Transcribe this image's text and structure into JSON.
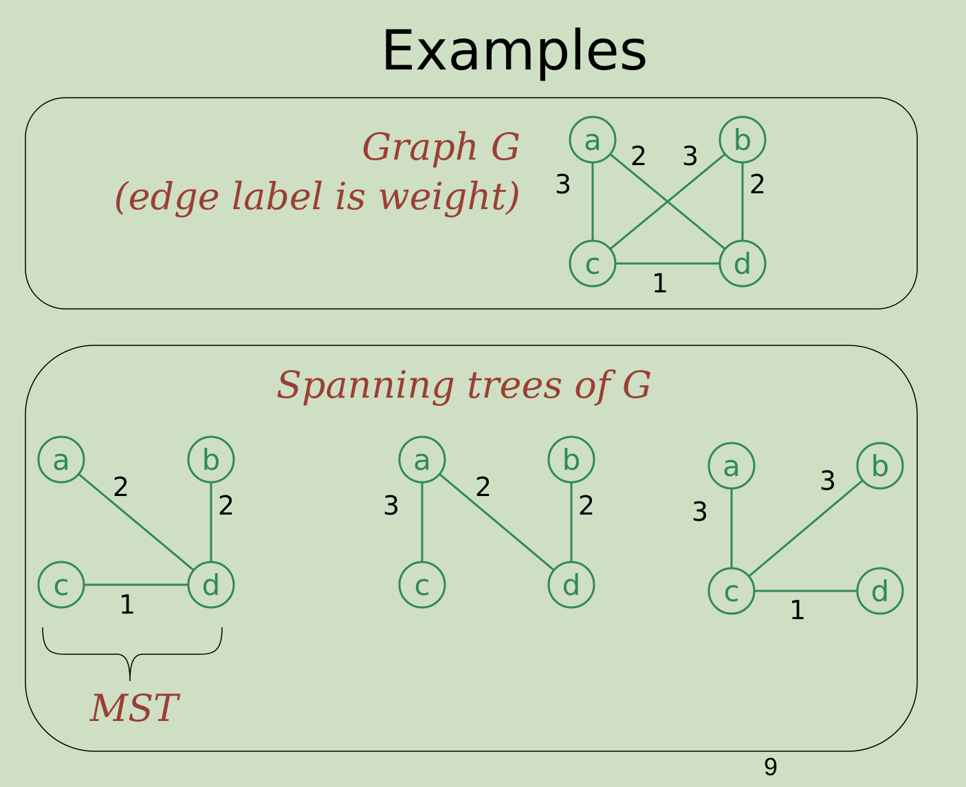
{
  "title": "Examples",
  "graph_panel": {
    "title_line1": "Graph G",
    "title_line2": "(edge label is weight)",
    "nodes": [
      "a",
      "b",
      "c",
      "d"
    ],
    "edges": [
      {
        "from": "a",
        "to": "c",
        "weight": "3"
      },
      {
        "from": "a",
        "to": "d",
        "weight": "2"
      },
      {
        "from": "b",
        "to": "c",
        "weight": "3"
      },
      {
        "from": "b",
        "to": "d",
        "weight": "2"
      },
      {
        "from": "c",
        "to": "d",
        "weight": "1"
      }
    ]
  },
  "spanning_panel": {
    "title": "Spanning trees of G",
    "trees": [
      {
        "nodes": [
          "a",
          "b",
          "c",
          "d"
        ],
        "edges": [
          {
            "from": "a",
            "to": "d",
            "weight": "2"
          },
          {
            "from": "b",
            "to": "d",
            "weight": "2"
          },
          {
            "from": "c",
            "to": "d",
            "weight": "1"
          }
        ],
        "label": "MST"
      },
      {
        "nodes": [
          "a",
          "b",
          "c",
          "d"
        ],
        "edges": [
          {
            "from": "a",
            "to": "c",
            "weight": "3"
          },
          {
            "from": "a",
            "to": "d",
            "weight": "2"
          },
          {
            "from": "b",
            "to": "d",
            "weight": "2"
          }
        ]
      },
      {
        "nodes": [
          "a",
          "b",
          "c",
          "d"
        ],
        "edges": [
          {
            "from": "a",
            "to": "c",
            "weight": "3"
          },
          {
            "from": "b",
            "to": "c",
            "weight": "3"
          },
          {
            "from": "c",
            "to": "d",
            "weight": "1"
          }
        ]
      }
    ]
  },
  "page_number": "9"
}
